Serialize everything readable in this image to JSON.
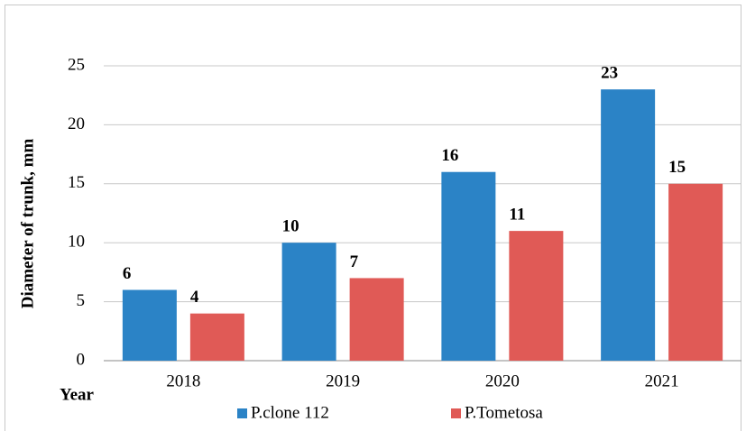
{
  "chart_data": {
    "type": "bar",
    "y_label": "Diameter of  trunk, mm",
    "x_label": "Year",
    "categories": [
      "2018",
      "2019",
      "2020",
      "2021"
    ],
    "series": [
      {
        "name": "P.clone 112",
        "color": "#2b83c6",
        "values": [
          6,
          10,
          16,
          23
        ]
      },
      {
        "name": "P.Tometosa",
        "color": "#e05a56",
        "values": [
          4,
          7,
          11,
          15
        ]
      }
    ],
    "ylim": [
      0,
      25
    ],
    "yticks": [
      0,
      5,
      10,
      15,
      20,
      25
    ],
    "grid": true,
    "legend": "bottom"
  }
}
